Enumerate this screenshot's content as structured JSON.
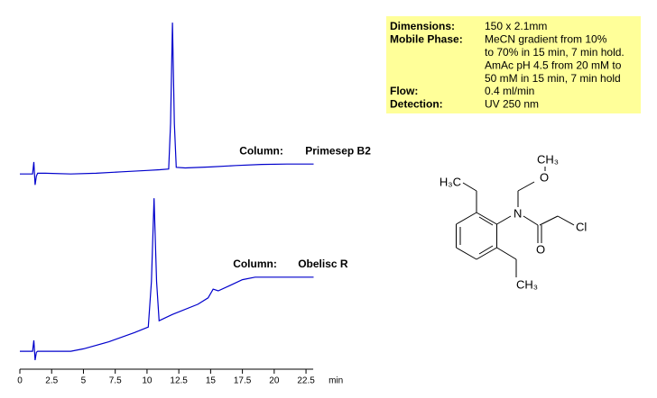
{
  "chart_data": {
    "type": "line",
    "xlabel": "min",
    "xlim": [
      0,
      24
    ],
    "ylim": [
      0,
      100
    ],
    "xticks": [
      0,
      2.5,
      5,
      7.5,
      10,
      12.5,
      15,
      17.5,
      20,
      22.5
    ],
    "series": [
      {
        "name": "Primesep B2",
        "annotation": "Column:",
        "color": "#0000cc",
        "x": [
          0,
          1.0,
          1.1,
          1.2,
          1.3,
          1.4,
          2,
          4,
          6,
          8,
          10,
          11,
          11.7,
          11.85,
          12.0,
          12.15,
          12.3,
          13,
          15,
          17,
          19,
          21,
          23.1
        ],
        "values": [
          55.6,
          55.6,
          59,
          52.5,
          55,
          55.8,
          55.8,
          55.6,
          55.8,
          56.2,
          56.6,
          56.8,
          57,
          70,
          98.7,
          70,
          57.5,
          57.3,
          57.6,
          58,
          58.3,
          58.4,
          58.4
        ]
      },
      {
        "name": "Obelisc R",
        "annotation": "Column:",
        "color": "#0000cc",
        "x": [
          0,
          1.0,
          1.1,
          1.2,
          1.3,
          1.4,
          4,
          5,
          7,
          9,
          10.1,
          10.35,
          10.55,
          10.75,
          10.95,
          12,
          14,
          14.8,
          15.2,
          15.6,
          16.5,
          17.5,
          18.5,
          23.1
        ],
        "values": [
          5.1,
          5.1,
          8.2,
          2.6,
          4.8,
          5.1,
          5.1,
          5.8,
          7.8,
          10.4,
          12,
          25,
          48.7,
          25,
          13.8,
          15.6,
          18.5,
          20.3,
          22.8,
          22.3,
          23.8,
          25.5,
          26.2,
          26.2
        ]
      }
    ]
  },
  "conditions": [
    {
      "label": "Dimensions:",
      "lines": [
        "150 x 2.1mm"
      ]
    },
    {
      "label": "Mobile Phase:",
      "lines": [
        "MeCN gradient from 10%",
        "to 70% in 15 min, 7 min hold.",
        "AmAc pH 4.5 from 20 mM to",
        "50 mM in 15 min, 7 min hold"
      ]
    },
    {
      "label": "Flow:",
      "lines": [
        "0.4 ml/min"
      ]
    },
    {
      "label": "Detection:",
      "lines": [
        "UV 250 nm"
      ]
    }
  ],
  "structure": {
    "top_ethyl": "H₃C",
    "methoxy_methyl": "CH₃",
    "ether_o": "O",
    "nitrogen": "N",
    "carbonyl_o": "O",
    "chlorine": "Cl",
    "bottom_ethyl": "CH₃"
  }
}
